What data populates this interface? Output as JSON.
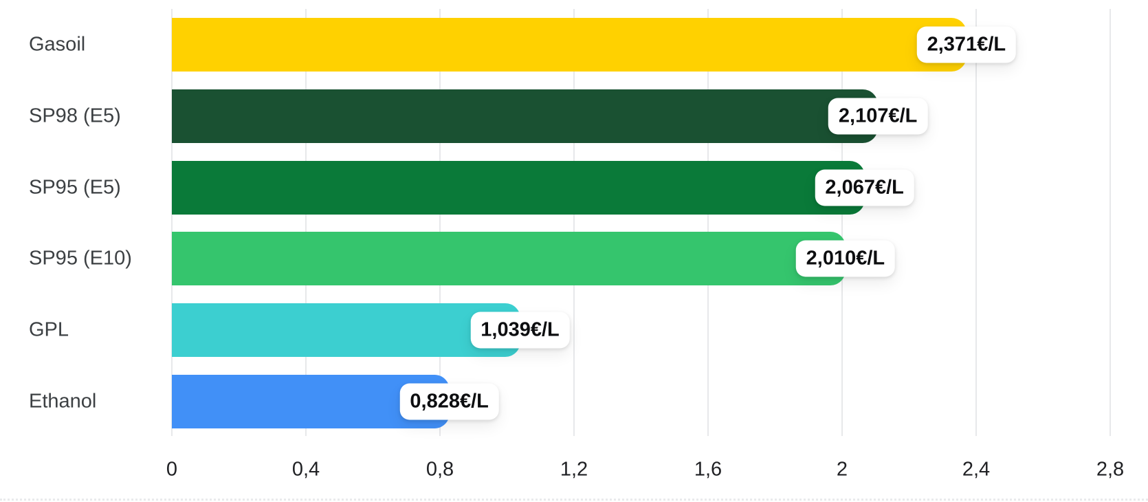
{
  "chart_data": {
    "type": "bar",
    "orientation": "horizontal",
    "title": "",
    "xlabel": "",
    "ylabel": "",
    "unit": "€/L",
    "categories": [
      "Gasoil",
      "SP98 (E5)",
      "SP95 (E5)",
      "SP95 (E10)",
      "GPL",
      "Ethanol"
    ],
    "values": [
      2.371,
      2.107,
      2.067,
      2.01,
      1.039,
      0.828
    ],
    "value_labels": [
      "2,371€/L",
      "2,107€/L",
      "2,067€/L",
      "2,010€/L",
      "1,039€/L",
      "0,828€/L"
    ],
    "bar_colors": [
      "#FFD100",
      "#1A5132",
      "#0A7A39",
      "#35C56D",
      "#3CCFD0",
      "#4190F7"
    ],
    "xlim": [
      0,
      2.8
    ],
    "x_ticks": [
      0,
      0.4,
      0.8,
      1.2,
      1.6,
      2,
      2.4,
      2.8
    ],
    "x_tick_labels": [
      "0",
      "0,4",
      "0,8",
      "1,2",
      "1,6",
      "2",
      "2,4",
      "2,8"
    ],
    "grid": true,
    "legend": false,
    "value_label_style": "white-pill-centered-on-bar-end"
  }
}
